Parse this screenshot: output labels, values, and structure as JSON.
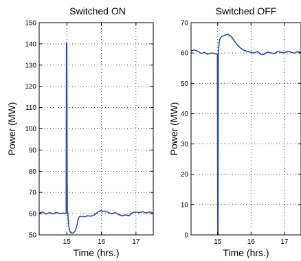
{
  "chart_data": [
    {
      "type": "line",
      "title": "Switched ON",
      "xlabel": "Time (hrs.)",
      "ylabel": "Power (MW)",
      "xlim": [
        14.2,
        17.5
      ],
      "ylim": [
        50,
        150
      ],
      "xticks": [
        15,
        16,
        17
      ],
      "xtick_labels": [
        "15",
        "16",
        "17"
      ],
      "yticks": [
        50,
        60,
        70,
        80,
        90,
        100,
        110,
        120,
        130,
        140,
        150
      ],
      "ytick_labels": [
        "50",
        "60",
        "70",
        "80",
        "90",
        "100",
        "110",
        "120",
        "130",
        "140",
        "150"
      ],
      "grid": true,
      "color": "#2e4b9e",
      "series": [
        {
          "x": [
            14.2,
            14.3,
            14.4,
            14.5,
            14.6,
            14.7,
            14.8,
            14.9,
            14.98,
            14.99,
            15.0,
            15.01,
            15.02,
            15.05,
            15.08,
            15.12,
            15.18,
            15.25,
            15.3,
            15.33,
            15.36,
            15.4,
            15.5,
            15.6,
            15.7,
            15.8,
            15.9,
            16.0,
            16.05,
            16.1,
            16.2,
            16.3,
            16.4,
            16.5,
            16.6,
            16.7,
            16.8,
            16.9,
            17.0,
            17.1,
            17.2,
            17.3,
            17.4,
            17.5
          ],
          "values": [
            60.2,
            60.8,
            59.8,
            60.5,
            59.9,
            60.6,
            60.0,
            60.3,
            60.0,
            140.5,
            140.0,
            75.0,
            62.0,
            55.0,
            52.0,
            51.0,
            50.8,
            52.0,
            55.0,
            57.5,
            58.5,
            58.8,
            58.5,
            59.0,
            58.8,
            59.5,
            60.8,
            61.5,
            61.0,
            61.2,
            60.5,
            60.0,
            60.5,
            59.6,
            59.0,
            59.4,
            59.0,
            60.5,
            60.8,
            60.5,
            60.9,
            60.3,
            60.8,
            60.2
          ]
        }
      ]
    },
    {
      "type": "line",
      "title": "Switched OFF",
      "xlabel": "Time (hrs.)",
      "ylabel": "Power (MW)",
      "xlim": [
        14.2,
        17.5
      ],
      "ylim": [
        0,
        70
      ],
      "xticks": [
        15,
        16,
        17
      ],
      "xtick_labels": [
        "15",
        "16",
        "17"
      ],
      "yticks": [
        0,
        10,
        20,
        30,
        40,
        50,
        60,
        70
      ],
      "ytick_labels": [
        "0",
        "10",
        "20",
        "30",
        "40",
        "50",
        "60",
        "70"
      ],
      "grid": true,
      "color": "#2e4b9e",
      "series": [
        {
          "x": [
            14.2,
            14.3,
            14.4,
            14.5,
            14.6,
            14.7,
            14.8,
            14.9,
            14.99,
            15.0,
            15.01,
            15.02,
            15.04,
            15.06,
            15.1,
            15.15,
            15.2,
            15.3,
            15.4,
            15.5,
            15.6,
            15.7,
            15.8,
            15.9,
            16.0,
            16.1,
            16.2,
            16.3,
            16.4,
            16.5,
            16.6,
            16.7,
            16.8,
            16.9,
            17.0,
            17.1,
            17.2,
            17.3,
            17.4,
            17.5
          ],
          "values": [
            60.7,
            61.0,
            60.6,
            59.8,
            60.2,
            59.6,
            60.0,
            59.8,
            59.5,
            0.0,
            0.0,
            60.0,
            63.0,
            64.5,
            65.2,
            65.5,
            65.8,
            66.2,
            65.5,
            64.0,
            62.5,
            61.5,
            60.8,
            60.5,
            60.2,
            60.0,
            60.5,
            59.5,
            59.6,
            60.3,
            60.0,
            59.8,
            60.5,
            60.2,
            60.0,
            60.6,
            60.3,
            59.9,
            60.5,
            60.1
          ]
        }
      ]
    }
  ]
}
